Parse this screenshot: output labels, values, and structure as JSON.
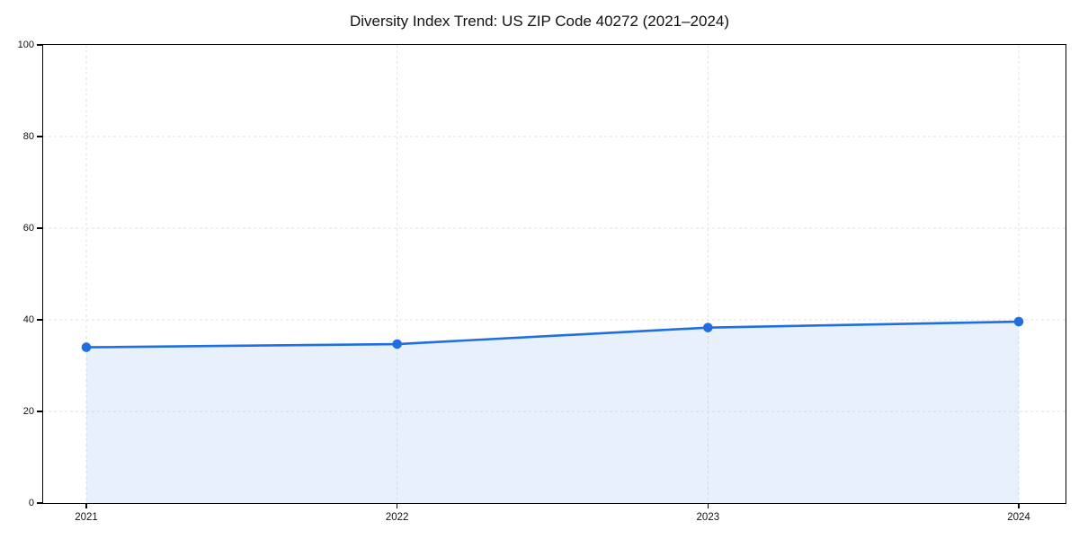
{
  "chart_data": {
    "type": "area",
    "title": "Diversity Index Trend: US ZIP Code 40272 (2021–2024)",
    "x_categories": [
      "2021",
      "2022",
      "2023",
      "2024"
    ],
    "values": [
      34.0,
      34.7,
      38.3,
      39.6
    ],
    "xlabel": "",
    "ylabel": "",
    "ylim": [
      0,
      100
    ],
    "yticks": [
      0,
      20,
      40,
      60,
      80,
      100
    ],
    "xtick_labels": [
      "2021",
      "2022",
      "2023",
      "2024"
    ],
    "grid": true,
    "grid_style": "dashed",
    "legend_position": "none",
    "marker": "circle",
    "colors": {
      "line": "#1f6fe0",
      "fill": "rgba(31,111,224,0.10)",
      "grid": "#e2e2e2",
      "axis": "#000000",
      "text": "#111111",
      "background": "#ffffff"
    }
  }
}
